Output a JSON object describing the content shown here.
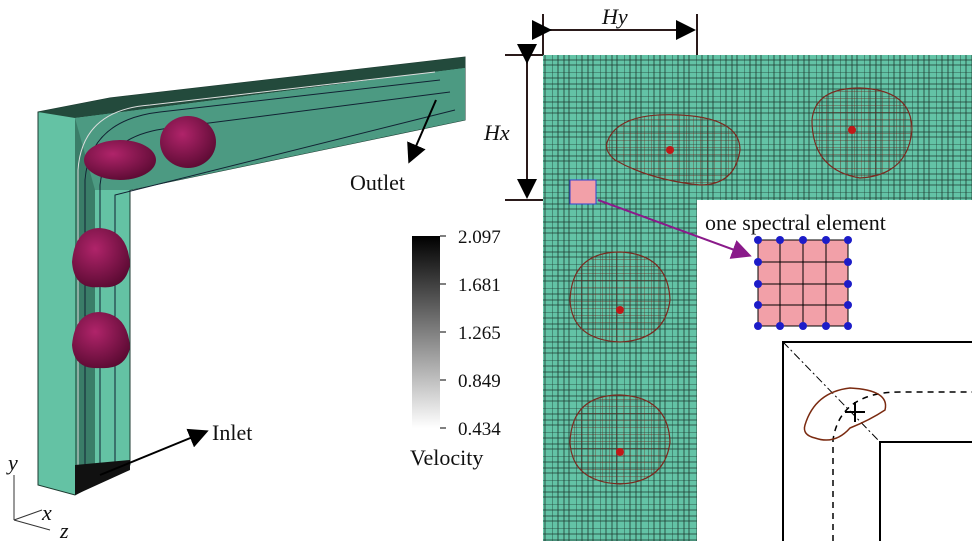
{
  "labels": {
    "hy": "Hy",
    "hx": "Hx",
    "outlet": "Outlet",
    "inlet": "Inlet",
    "spectral": "one spectral element"
  },
  "colorbar": {
    "title": "Velocity",
    "ticks": [
      2.097,
      1.681,
      1.265,
      0.849,
      0.434
    ]
  },
  "axes": {
    "y": "y",
    "x": "x",
    "z": "z"
  }
}
